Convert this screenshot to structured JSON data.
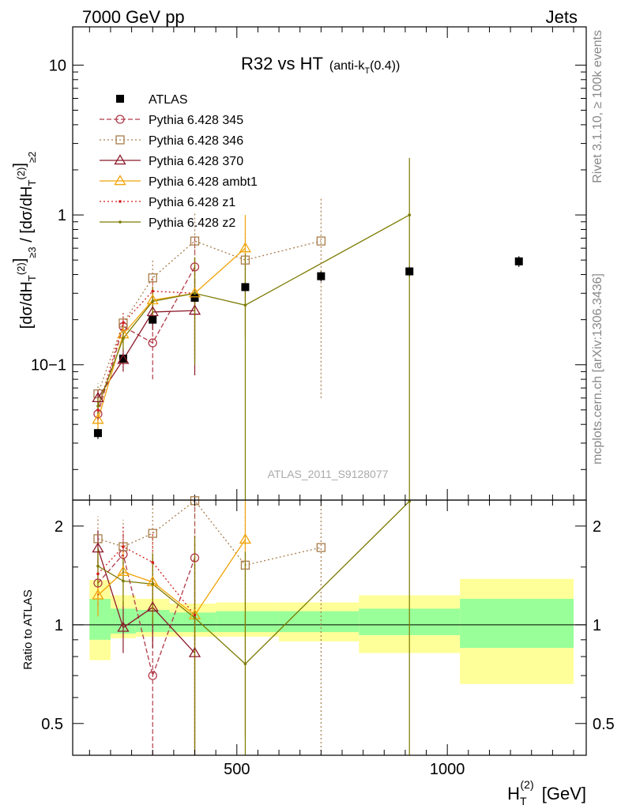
{
  "header": {
    "left": "7000 GeV pp",
    "right": "Jets"
  },
  "side_labels": {
    "rivet": "Rivet 3.1.10, ≥ 100k events",
    "mcplots": "mcplots.cern.ch [arXiv:1306.3436]"
  },
  "watermark": "ATLAS_2011_S9128077",
  "chart_data": [
    {
      "panel": "main",
      "type": "scatter",
      "title": "R32 vs HT",
      "title_suffix": "(anti-k_T(0.4))",
      "ylabel": "[dσ/dH_T^(2)]_{≥3} / [dσ/dH_T^(2)]_{≥2}",
      "yscale": "log",
      "xlim": [
        110,
        1330
      ],
      "ylim": [
        0.0125,
        18
      ],
      "y_ticks": [
        {
          "value": 0.1,
          "label": "10−1"
        },
        {
          "value": 1,
          "label": "1"
        },
        {
          "value": 10,
          "label": "10"
        }
      ],
      "legend_position": "top-left",
      "series": [
        {
          "name": "ATLAS",
          "color": "#000000",
          "marker": "square-filled",
          "line": "none",
          "points": [
            {
              "x": 170,
              "y": 0.035,
              "err": 0.003
            },
            {
              "x": 230,
              "y": 0.11,
              "err": 0.008
            },
            {
              "x": 300,
              "y": 0.2,
              "err": 0.015
            },
            {
              "x": 400,
              "y": 0.28,
              "err": 0.02
            },
            {
              "x": 520,
              "y": 0.33,
              "err": 0.025
            },
            {
              "x": 700,
              "y": 0.39,
              "err": 0.03
            },
            {
              "x": 910,
              "y": 0.42,
              "err": 0.035
            },
            {
              "x": 1170,
              "y": 0.49,
              "err": 0.04
            }
          ]
        },
        {
          "name": "Pythia 6.428 345",
          "color": "#b03a48",
          "marker": "circle-open",
          "line": "dashed",
          "points": [
            {
              "x": 170,
              "y": 0.047,
              "lo": 0.04,
              "hi": 0.055
            },
            {
              "x": 230,
              "y": 0.18,
              "lo": 0.15,
              "hi": 0.21
            },
            {
              "x": 300,
              "y": 0.14,
              "lo": 0.08,
              "hi": 0.2
            },
            {
              "x": 400,
              "y": 0.45,
              "lo": 0.25,
              "hi": 0.75
            }
          ]
        },
        {
          "name": "Pythia 6.428 346",
          "color": "#a87c4a",
          "marker": "square-open",
          "line": "dotted",
          "points": [
            {
              "x": 170,
              "y": 0.064,
              "lo": 0.055,
              "hi": 0.075
            },
            {
              "x": 230,
              "y": 0.19,
              "lo": 0.16,
              "hi": 0.23
            },
            {
              "x": 300,
              "y": 0.38,
              "lo": 0.28,
              "hi": 0.5
            },
            {
              "x": 400,
              "y": 0.67,
              "lo": 0.4,
              "hi": 1.05
            },
            {
              "x": 520,
              "y": 0.5,
              "lo": 0.28,
              "hi": 0.75
            },
            {
              "x": 700,
              "y": 0.67,
              "lo": 0.06,
              "hi": 1.3
            }
          ]
        },
        {
          "name": "Pythia 6.428 370",
          "color": "#8b1a2b",
          "marker": "triangle-open",
          "line": "solid",
          "points": [
            {
              "x": 170,
              "y": 0.06,
              "lo": 0.052,
              "hi": 0.068
            },
            {
              "x": 230,
              "y": 0.108,
              "lo": 0.09,
              "hi": 0.13
            },
            {
              "x": 300,
              "y": 0.225,
              "lo": 0.17,
              "hi": 0.28
            },
            {
              "x": 400,
              "y": 0.23,
              "lo": 0.085,
              "hi": 0.38
            }
          ]
        },
        {
          "name": "Pythia 6.428 ambt1",
          "color": "#f0a30a",
          "marker": "triangle-open",
          "line": "solid",
          "points": [
            {
              "x": 170,
              "y": 0.043,
              "lo": 0.037,
              "hi": 0.049
            },
            {
              "x": 230,
              "y": 0.16,
              "lo": 0.135,
              "hi": 0.185
            },
            {
              "x": 300,
              "y": 0.27,
              "lo": 0.21,
              "hi": 0.33
            },
            {
              "x": 400,
              "y": 0.3,
              "lo": 0.12,
              "hi": 0.5
            },
            {
              "x": 520,
              "y": 0.6,
              "lo": 0.15,
              "hi": 1.0
            }
          ]
        },
        {
          "name": "Pythia 6.428 z1",
          "color": "#d21f1f",
          "marker": "dot",
          "line": "dotted",
          "points": [
            {
              "x": 170,
              "y": 0.05,
              "lo": 0.043,
              "hi": 0.057
            },
            {
              "x": 230,
              "y": 0.19,
              "lo": 0.16,
              "hi": 0.22
            },
            {
              "x": 300,
              "y": 0.31,
              "lo": 0.24,
              "hi": 0.38
            },
            {
              "x": 400,
              "y": 0.3,
              "lo": 0.11,
              "hi": 0.52
            }
          ]
        },
        {
          "name": "Pythia 6.428 z2",
          "color": "#7c7a00",
          "marker": "dot",
          "line": "solid",
          "points": [
            {
              "x": 170,
              "y": 0.053,
              "lo": 0.046,
              "hi": 0.06
            },
            {
              "x": 230,
              "y": 0.15,
              "lo": 0.125,
              "hi": 0.175
            },
            {
              "x": 300,
              "y": 0.265,
              "lo": 0.2,
              "hi": 0.33
            },
            {
              "x": 400,
              "y": 0.3,
              "lo": 0.1,
              "hi": 0.52
            },
            {
              "x": 520,
              "y": 0.25,
              "lo": 0.0125,
              "hi": 0.55
            },
            {
              "x": 910,
              "y": 1.0,
              "lo": 0.0125,
              "hi": 2.4
            }
          ]
        }
      ]
    },
    {
      "panel": "ratio",
      "type": "scatter",
      "ylabel": "Ratio to ATLAS",
      "xlabel": "H_T^(2) [GeV]",
      "xlim": [
        110,
        1330
      ],
      "ylim": [
        0.4,
        2.4
      ],
      "x_ticks": [
        {
          "value": 500,
          "label": "500"
        },
        {
          "value": 1000,
          "label": "1000"
        }
      ],
      "y_ticks": [
        {
          "value": 0.5,
          "label": "0.5"
        },
        {
          "value": 1,
          "label": "1"
        },
        {
          "value": 2,
          "label": "2"
        }
      ],
      "reference_line": 1,
      "bands": [
        {
          "x0": 150,
          "x1": 200,
          "inner": [
            0.9,
            1.2
          ],
          "outer": [
            0.78,
            1.37
          ]
        },
        {
          "x0": 200,
          "x1": 260,
          "inner": [
            0.94,
            1.12
          ],
          "outer": [
            0.91,
            1.23
          ]
        },
        {
          "x0": 260,
          "x1": 340,
          "inner": [
            0.95,
            1.11
          ],
          "outer": [
            0.92,
            1.2
          ]
        },
        {
          "x0": 340,
          "x1": 450,
          "inner": [
            0.95,
            1.09
          ],
          "outer": [
            0.92,
            1.16
          ]
        },
        {
          "x0": 450,
          "x1": 600,
          "inner": [
            0.95,
            1.1
          ],
          "outer": [
            0.92,
            1.17
          ]
        },
        {
          "x0": 600,
          "x1": 790,
          "inner": [
            0.95,
            1.1
          ],
          "outer": [
            0.89,
            1.17
          ]
        },
        {
          "x0": 790,
          "x1": 1030,
          "inner": [
            0.93,
            1.12
          ],
          "outer": [
            0.82,
            1.23
          ]
        },
        {
          "x0": 1030,
          "x1": 1300,
          "inner": [
            0.85,
            1.2
          ],
          "outer": [
            0.66,
            1.38
          ]
        }
      ],
      "band_colors": {
        "inner": "#99ff99",
        "outer": "#ffff99"
      },
      "series": [
        {
          "name": "Pythia 6.428 345",
          "color": "#b03a48",
          "marker": "circle-open",
          "line": "dashed",
          "points": [
            {
              "x": 170,
              "y": 1.34,
              "lo": 1.14,
              "hi": 1.57
            },
            {
              "x": 230,
              "y": 1.64,
              "lo": 1.36,
              "hi": 1.91
            },
            {
              "x": 300,
              "y": 0.7,
              "lo": 0.4,
              "hi": 1.0
            },
            {
              "x": 400,
              "y": 1.6,
              "lo": 0.9,
              "hi": 2.4
            }
          ]
        },
        {
          "name": "Pythia 6.428 346",
          "color": "#a87c4a",
          "marker": "square-open",
          "line": "dotted",
          "points": [
            {
              "x": 170,
              "y": 1.83,
              "lo": 1.57,
              "hi": 2.14
            },
            {
              "x": 230,
              "y": 1.73,
              "lo": 1.45,
              "hi": 2.09
            },
            {
              "x": 300,
              "y": 1.9,
              "lo": 1.4,
              "hi": 2.4
            },
            {
              "x": 400,
              "y": 2.39,
              "lo": 1.43,
              "hi": 2.4
            },
            {
              "x": 520,
              "y": 1.52,
              "lo": 0.85,
              "hi": 2.27
            },
            {
              "x": 700,
              "y": 1.72,
              "lo": 0.4,
              "hi": 2.4
            }
          ]
        },
        {
          "name": "Pythia 6.428 370",
          "color": "#8b1a2b",
          "marker": "triangle-open",
          "line": "solid",
          "points": [
            {
              "x": 170,
              "y": 1.71,
              "lo": 1.49,
              "hi": 1.94
            },
            {
              "x": 230,
              "y": 0.98,
              "lo": 0.82,
              "hi": 1.18
            },
            {
              "x": 300,
              "y": 1.13,
              "lo": 0.85,
              "hi": 1.4
            },
            {
              "x": 400,
              "y": 0.82,
              "lo": 0.4,
              "hi": 1.36
            }
          ]
        },
        {
          "name": "Pythia 6.428 ambt1",
          "color": "#f0a30a",
          "marker": "triangle-open",
          "line": "solid",
          "points": [
            {
              "x": 170,
              "y": 1.23,
              "lo": 1.06,
              "hi": 1.4
            },
            {
              "x": 230,
              "y": 1.45,
              "lo": 1.23,
              "hi": 1.68
            },
            {
              "x": 300,
              "y": 1.35,
              "lo": 1.05,
              "hi": 1.65
            },
            {
              "x": 400,
              "y": 1.07,
              "lo": 0.43,
              "hi": 1.79
            },
            {
              "x": 520,
              "y": 1.82,
              "lo": 0.45,
              "hi": 2.4
            }
          ]
        },
        {
          "name": "Pythia 6.428 z1",
          "color": "#d21f1f",
          "marker": "dot",
          "line": "dotted",
          "points": [
            {
              "x": 170,
              "y": 1.43,
              "lo": 1.23,
              "hi": 1.63
            },
            {
              "x": 230,
              "y": 1.73,
              "lo": 1.45,
              "hi": 2.0
            },
            {
              "x": 300,
              "y": 1.55,
              "lo": 1.2,
              "hi": 1.9
            },
            {
              "x": 400,
              "y": 1.07,
              "lo": 0.4,
              "hi": 1.86
            }
          ]
        },
        {
          "name": "Pythia 6.428 z2",
          "color": "#7c7a00",
          "marker": "dot",
          "line": "solid",
          "points": [
            {
              "x": 170,
              "y": 1.51,
              "lo": 1.31,
              "hi": 1.71
            },
            {
              "x": 230,
              "y": 1.36,
              "lo": 1.14,
              "hi": 1.59
            },
            {
              "x": 300,
              "y": 1.33,
              "lo": 1.0,
              "hi": 1.65
            },
            {
              "x": 400,
              "y": 1.05,
              "lo": 0.36,
              "hi": 1.86
            },
            {
              "x": 520,
              "y": 0.76,
              "lo": 0.4,
              "hi": 1.67
            },
            {
              "x": 910,
              "y": 2.38,
              "lo": 0.4,
              "hi": 2.4
            }
          ]
        }
      ]
    }
  ]
}
